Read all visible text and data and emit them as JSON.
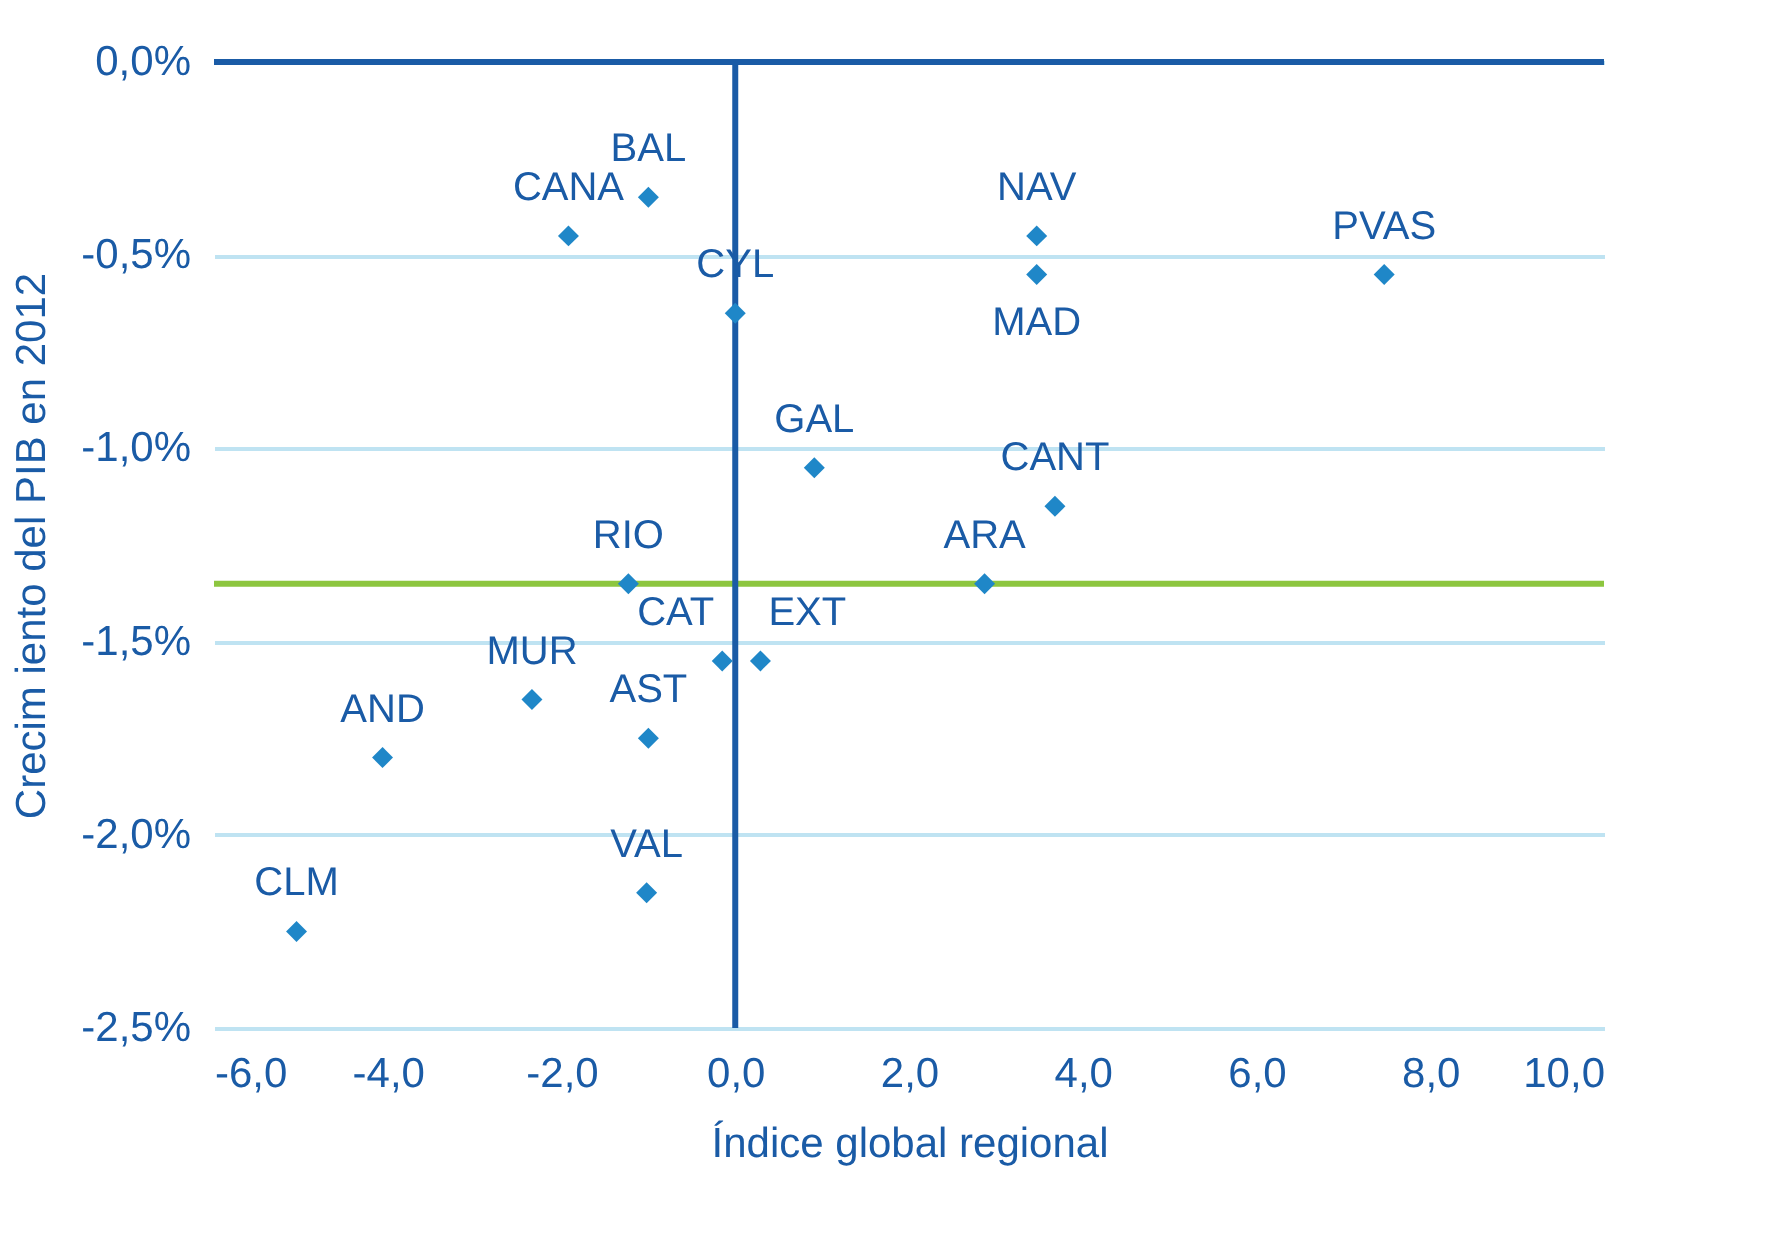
{
  "chart_data": {
    "type": "scatter",
    "xlabel": "Índice global regional",
    "ylabel": "Crecim iento del PIB en 2012",
    "marker": "diamond",
    "grid": "y",
    "x": [
      -1.0,
      -1.92,
      0.0,
      3.47,
      3.47,
      7.47,
      0.91,
      3.68,
      -1.23,
      2.87,
      -0.15,
      0.29,
      -2.34,
      -1.0,
      -4.06,
      -1.02,
      -5.05
    ],
    "series": [
      {
        "color": "#1f87c8",
        "values": [
          -0.35,
          -0.45,
          -0.65,
          -0.45,
          -0.55,
          -0.55,
          -1.05,
          -1.15,
          -1.35,
          -1.35,
          -1.55,
          -1.55,
          -1.65,
          -1.75,
          -1.8,
          -2.15,
          -2.25
        ]
      }
    ],
    "xlim": [
      -6,
      10
    ],
    "ylim": [
      -2.5,
      0
    ],
    "xticks": [
      {
        "value": -6,
        "label": "-6,0"
      },
      {
        "value": -4,
        "label": "-4,0"
      },
      {
        "value": -2,
        "label": "-2,0"
      },
      {
        "value": 0,
        "label": "0,0"
      },
      {
        "value": 2,
        "label": "2,0"
      },
      {
        "value": 4,
        "label": "4,0"
      },
      {
        "value": 6,
        "label": "6,0"
      },
      {
        "value": 8,
        "label": "8,0"
      },
      {
        "value": 10,
        "label": "10,0"
      }
    ],
    "yticks": [
      {
        "value": 0,
        "label": "0,0%"
      },
      {
        "value": -0.5,
        "label": "-0,5%"
      },
      {
        "value": -1,
        "label": "-1,0%"
      },
      {
        "value": -1.5,
        "label": "-1,5%"
      },
      {
        "value": -2,
        "label": "-2,0%"
      },
      {
        "value": -2.5,
        "label": "-2,5%"
      }
    ],
    "ref_lines": [
      {
        "axis": "y",
        "value": -1.35,
        "color": "#8dc63f"
      },
      {
        "axis": "x",
        "value": 0,
        "color": "#1a5ba6"
      },
      {
        "axis": "y",
        "value": 0,
        "color": "#1a5ba6"
      }
    ],
    "annotations": [
      {
        "text": "BAL",
        "x": -1.0,
        "y": -0.35
      },
      {
        "text": "CANA",
        "x": -1.92,
        "y": -0.45
      },
      {
        "text": "CYL",
        "x": 0.0,
        "y": -0.65
      },
      {
        "text": "NAV",
        "x": 3.47,
        "y": -0.45
      },
      {
        "text": "MAD",
        "x": 3.47,
        "y": -0.55
      },
      {
        "text": "PVAS",
        "x": 7.47,
        "y": -0.55
      },
      {
        "text": "GAL",
        "x": 0.91,
        "y": -1.05
      },
      {
        "text": "CANT",
        "x": 3.68,
        "y": -1.15
      },
      {
        "text": "RIO",
        "x": -1.23,
        "y": -1.35
      },
      {
        "text": "ARA",
        "x": 2.87,
        "y": -1.35
      },
      {
        "text": "CAT",
        "x": -0.15,
        "y": -1.55
      },
      {
        "text": "EXT",
        "x": 0.29,
        "y": -1.55
      },
      {
        "text": "MUR",
        "x": -2.34,
        "y": -1.65
      },
      {
        "text": "AST",
        "x": -1.0,
        "y": -1.75
      },
      {
        "text": "AND",
        "x": -4.06,
        "y": -1.8
      },
      {
        "text": "VAL",
        "x": -1.02,
        "y": -2.15
      },
      {
        "text": "CLM",
        "x": -5.05,
        "y": -2.25
      }
    ]
  }
}
